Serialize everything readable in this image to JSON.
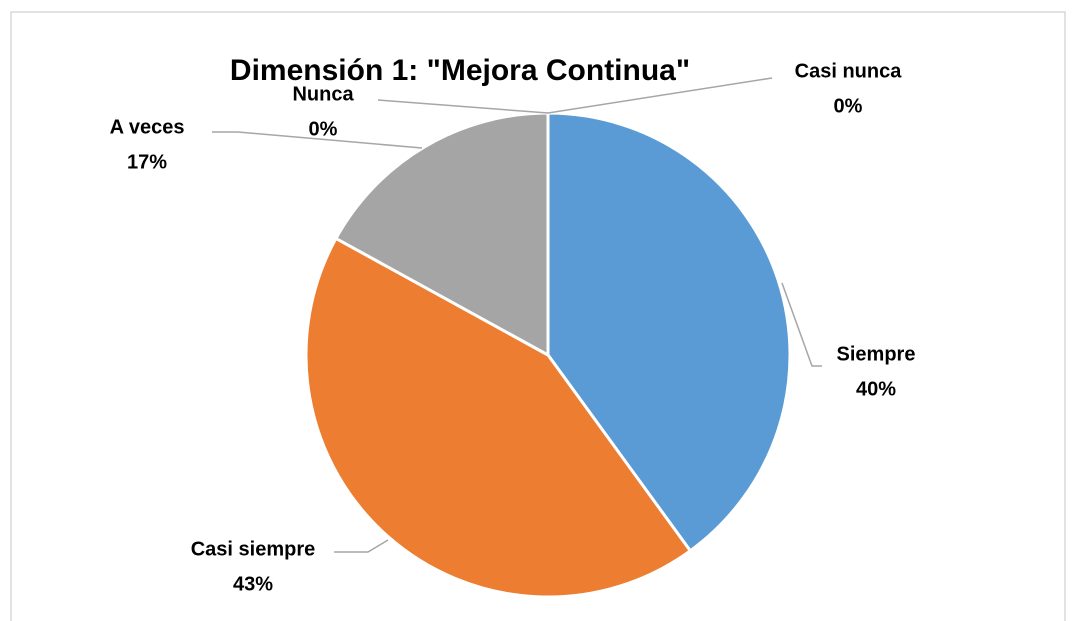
{
  "chart_data": {
    "type": "pie",
    "title": "Dimensión 1: \"Mejora Continua\"",
    "categories": [
      "Siempre",
      "Casi siempre",
      "A veces",
      "Nunca",
      "Casi nunca"
    ],
    "values": [
      40,
      43,
      17,
      0,
      0
    ],
    "value_labels": [
      "40%",
      "43%",
      "17%",
      "0%",
      "0%"
    ],
    "colors": [
      "#5b9bd5",
      "#ed7d31",
      "#a5a5a5",
      "#ffc000",
      "#4472c4"
    ]
  }
}
